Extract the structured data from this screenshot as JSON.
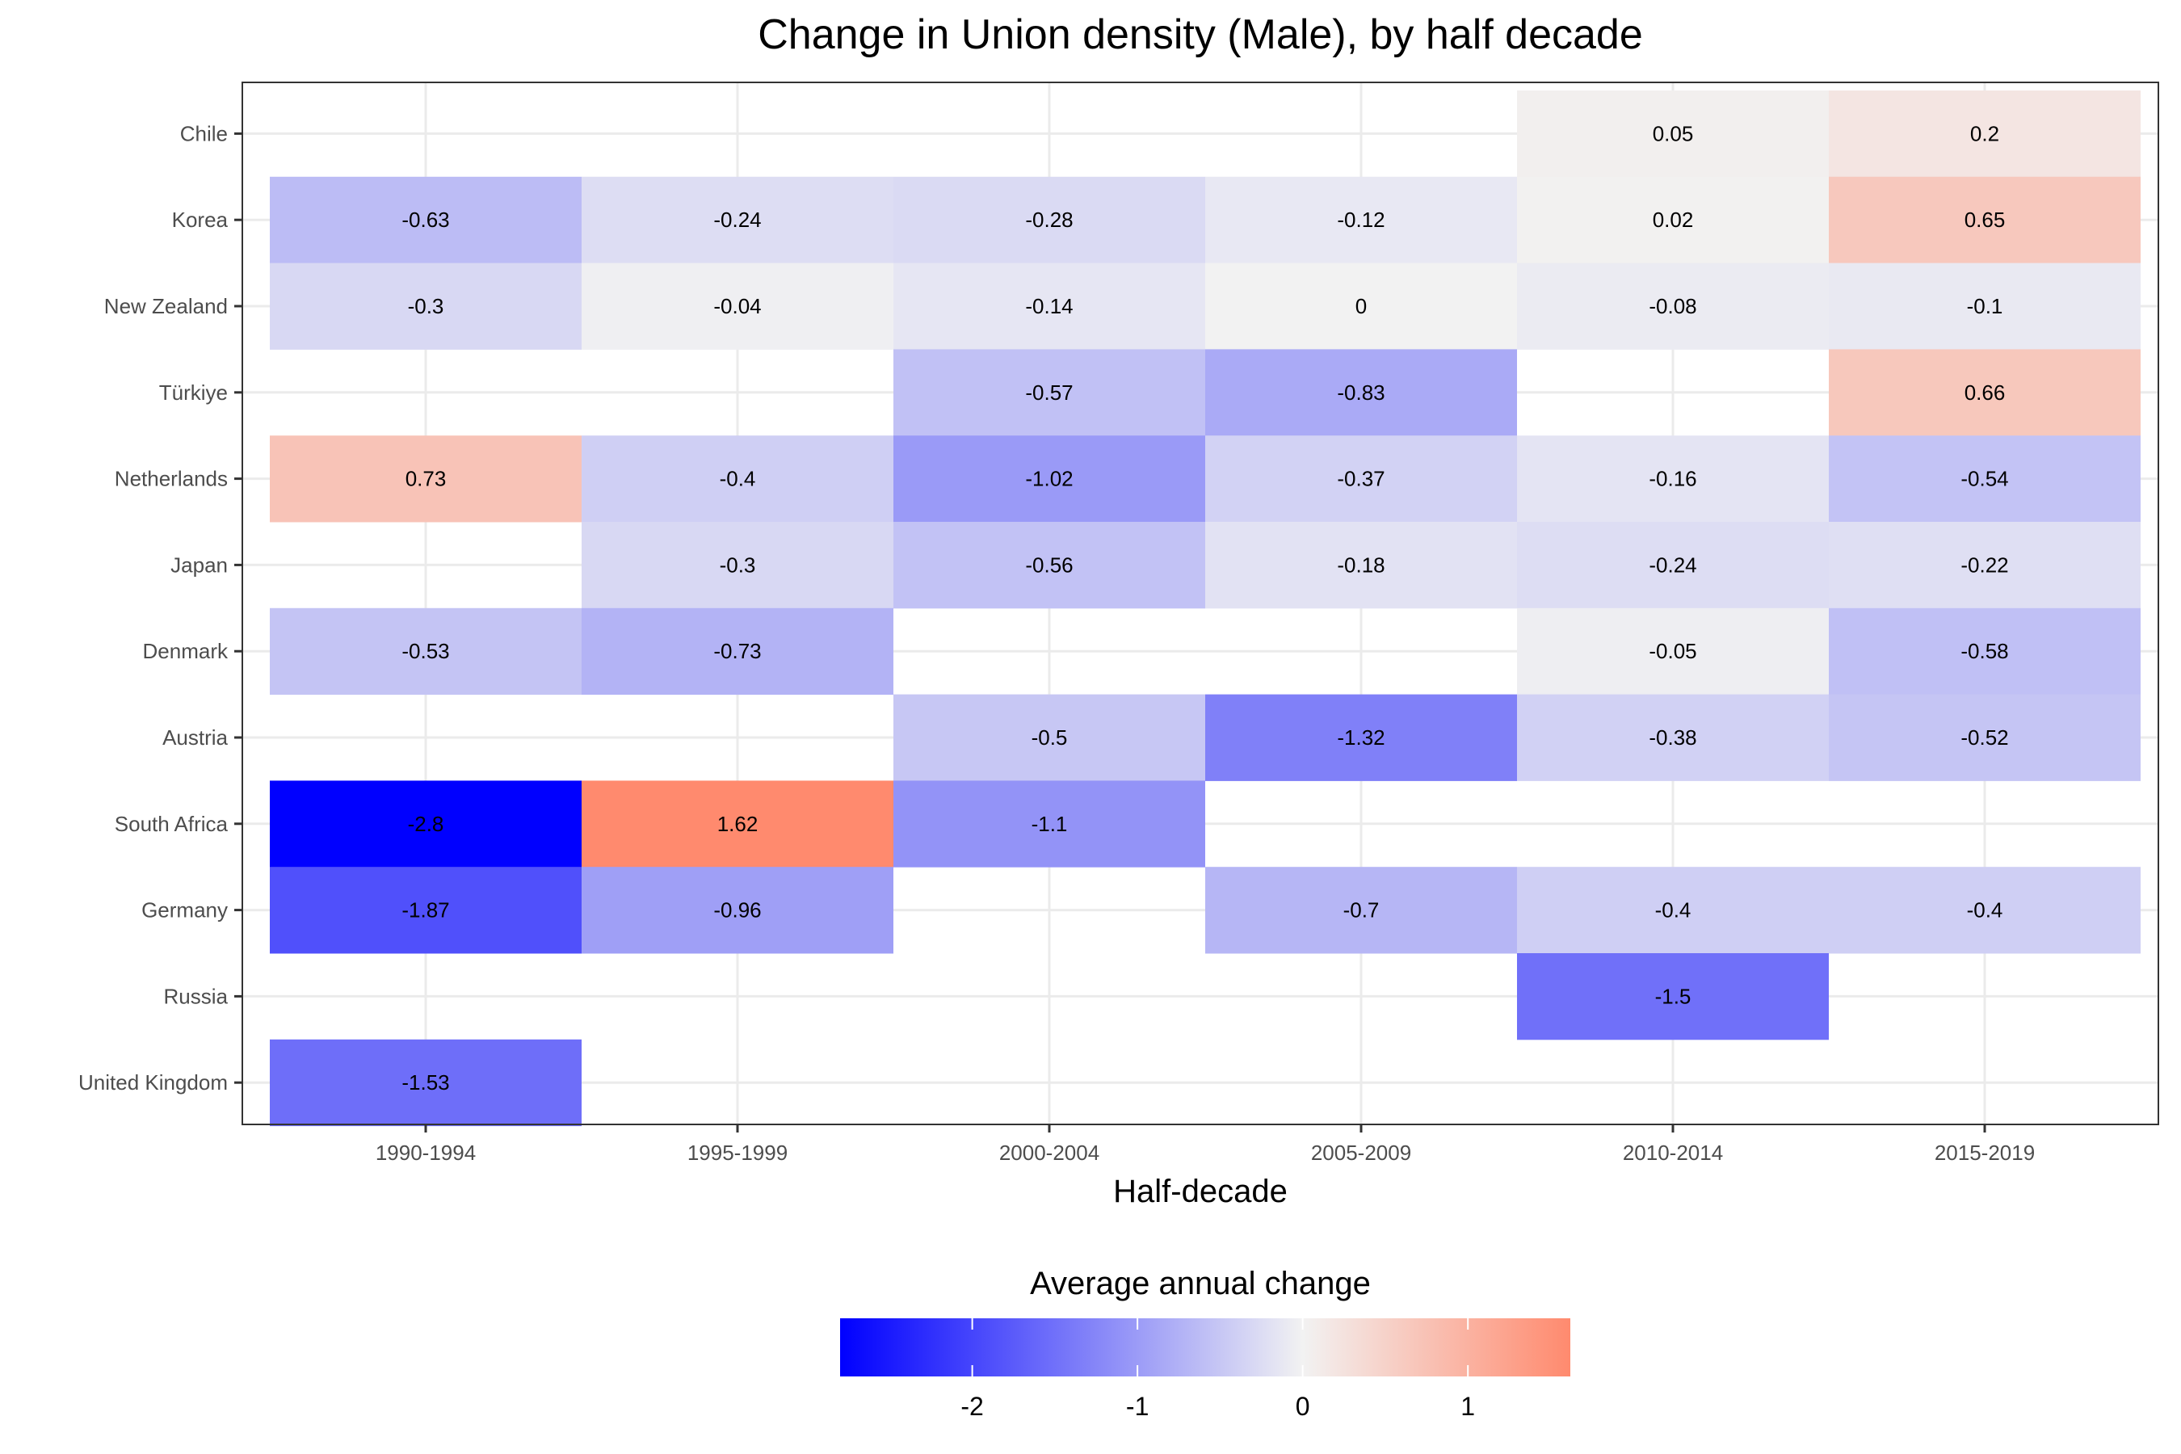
{
  "chart_data": {
    "type": "heatmap",
    "title": "Change in Union density (Male), by half decade",
    "xlabel": "Half-decade",
    "ylabel": "",
    "x_categories": [
      "1990-1994",
      "1995-1999",
      "2000-2004",
      "2005-2009",
      "2010-2014",
      "2015-2019"
    ],
    "y_categories": [
      "Chile",
      "Korea",
      "New Zealand",
      "Türkiye",
      "Netherlands",
      "Japan",
      "Denmark",
      "Austria",
      "South Africa",
      "Germany",
      "Russia",
      "United Kingdom"
    ],
    "cells": [
      {
        "country": "Chile",
        "period": "2010-2014",
        "value": 0.05,
        "label": "0.05"
      },
      {
        "country": "Chile",
        "period": "2015-2019",
        "value": 0.2,
        "label": "0.2"
      },
      {
        "country": "Korea",
        "period": "1990-1994",
        "value": -0.63,
        "label": "-0.63"
      },
      {
        "country": "Korea",
        "period": "1995-1999",
        "value": -0.24,
        "label": "-0.24"
      },
      {
        "country": "Korea",
        "period": "2000-2004",
        "value": -0.28,
        "label": "-0.28"
      },
      {
        "country": "Korea",
        "period": "2005-2009",
        "value": -0.12,
        "label": "-0.12"
      },
      {
        "country": "Korea",
        "period": "2010-2014",
        "value": 0.02,
        "label": "0.02"
      },
      {
        "country": "Korea",
        "period": "2015-2019",
        "value": 0.65,
        "label": "0.65"
      },
      {
        "country": "New Zealand",
        "period": "1990-1994",
        "value": -0.3,
        "label": "-0.3"
      },
      {
        "country": "New Zealand",
        "period": "1995-1999",
        "value": -0.04,
        "label": "-0.04"
      },
      {
        "country": "New Zealand",
        "period": "2000-2004",
        "value": -0.14,
        "label": "-0.14"
      },
      {
        "country": "New Zealand",
        "period": "2005-2009",
        "value": 0,
        "label": "0"
      },
      {
        "country": "New Zealand",
        "period": "2010-2014",
        "value": -0.08,
        "label": "-0.08"
      },
      {
        "country": "New Zealand",
        "period": "2015-2019",
        "value": -0.1,
        "label": "-0.1"
      },
      {
        "country": "Türkiye",
        "period": "2000-2004",
        "value": -0.57,
        "label": "-0.57"
      },
      {
        "country": "Türkiye",
        "period": "2005-2009",
        "value": -0.83,
        "label": "-0.83"
      },
      {
        "country": "Türkiye",
        "period": "2015-2019",
        "value": 0.66,
        "label": "0.66"
      },
      {
        "country": "Netherlands",
        "period": "1990-1994",
        "value": 0.73,
        "label": "0.73"
      },
      {
        "country": "Netherlands",
        "period": "1995-1999",
        "value": -0.4,
        "label": "-0.4"
      },
      {
        "country": "Netherlands",
        "period": "2000-2004",
        "value": -1.02,
        "label": "-1.02"
      },
      {
        "country": "Netherlands",
        "period": "2005-2009",
        "value": -0.37,
        "label": "-0.37"
      },
      {
        "country": "Netherlands",
        "period": "2010-2014",
        "value": -0.16,
        "label": "-0.16"
      },
      {
        "country": "Netherlands",
        "period": "2015-2019",
        "value": -0.54,
        "label": "-0.54"
      },
      {
        "country": "Japan",
        "period": "1995-1999",
        "value": -0.3,
        "label": "-0.3"
      },
      {
        "country": "Japan",
        "period": "2000-2004",
        "value": -0.56,
        "label": "-0.56"
      },
      {
        "country": "Japan",
        "period": "2005-2009",
        "value": -0.18,
        "label": "-0.18"
      },
      {
        "country": "Japan",
        "period": "2010-2014",
        "value": -0.24,
        "label": "-0.24"
      },
      {
        "country": "Japan",
        "period": "2015-2019",
        "value": -0.22,
        "label": "-0.22"
      },
      {
        "country": "Denmark",
        "period": "1990-1994",
        "value": -0.53,
        "label": "-0.53"
      },
      {
        "country": "Denmark",
        "period": "1995-1999",
        "value": -0.73,
        "label": "-0.73"
      },
      {
        "country": "Denmark",
        "period": "2010-2014",
        "value": -0.05,
        "label": "-0.05"
      },
      {
        "country": "Denmark",
        "period": "2015-2019",
        "value": -0.58,
        "label": "-0.58"
      },
      {
        "country": "Austria",
        "period": "2000-2004",
        "value": -0.5,
        "label": "-0.5"
      },
      {
        "country": "Austria",
        "period": "2005-2009",
        "value": -1.32,
        "label": "-1.32"
      },
      {
        "country": "Austria",
        "period": "2010-2014",
        "value": -0.38,
        "label": "-0.38"
      },
      {
        "country": "Austria",
        "period": "2015-2019",
        "value": -0.52,
        "label": "-0.52"
      },
      {
        "country": "South Africa",
        "period": "1990-1994",
        "value": -2.8,
        "label": "-2.8"
      },
      {
        "country": "South Africa",
        "period": "1995-1999",
        "value": 1.62,
        "label": "1.62"
      },
      {
        "country": "South Africa",
        "period": "2000-2004",
        "value": -1.1,
        "label": "-1.1"
      },
      {
        "country": "Germany",
        "period": "1990-1994",
        "value": -1.87,
        "label": "-1.87"
      },
      {
        "country": "Germany",
        "period": "1995-1999",
        "value": -0.96,
        "label": "-0.96"
      },
      {
        "country": "Germany",
        "period": "2005-2009",
        "value": -0.7,
        "label": "-0.7"
      },
      {
        "country": "Germany",
        "period": "2010-2014",
        "value": -0.4,
        "label": "-0.4"
      },
      {
        "country": "Germany",
        "period": "2015-2019",
        "value": -0.4,
        "label": "-0.4"
      },
      {
        "country": "Russia",
        "period": "2010-2014",
        "value": -1.5,
        "label": "-1.5"
      },
      {
        "country": "United Kingdom",
        "period": "1990-1994",
        "value": -1.53,
        "label": "-1.53"
      }
    ],
    "legend": {
      "title": "Average annual change",
      "position": "bottom",
      "range": [
        -2.8,
        1.62
      ],
      "ticks": [
        {
          "value": -2,
          "label": "-2"
        },
        {
          "value": -1,
          "label": "-1"
        },
        {
          "value": 0,
          "label": "0"
        },
        {
          "value": 1,
          "label": "1"
        }
      ]
    },
    "colors": {
      "low": "#0000FF",
      "mid": "#F2F2F2",
      "high": "#FF8A6E",
      "grid": "#EBEBEB",
      "panel_border": "#333333"
    },
    "grid": true
  }
}
